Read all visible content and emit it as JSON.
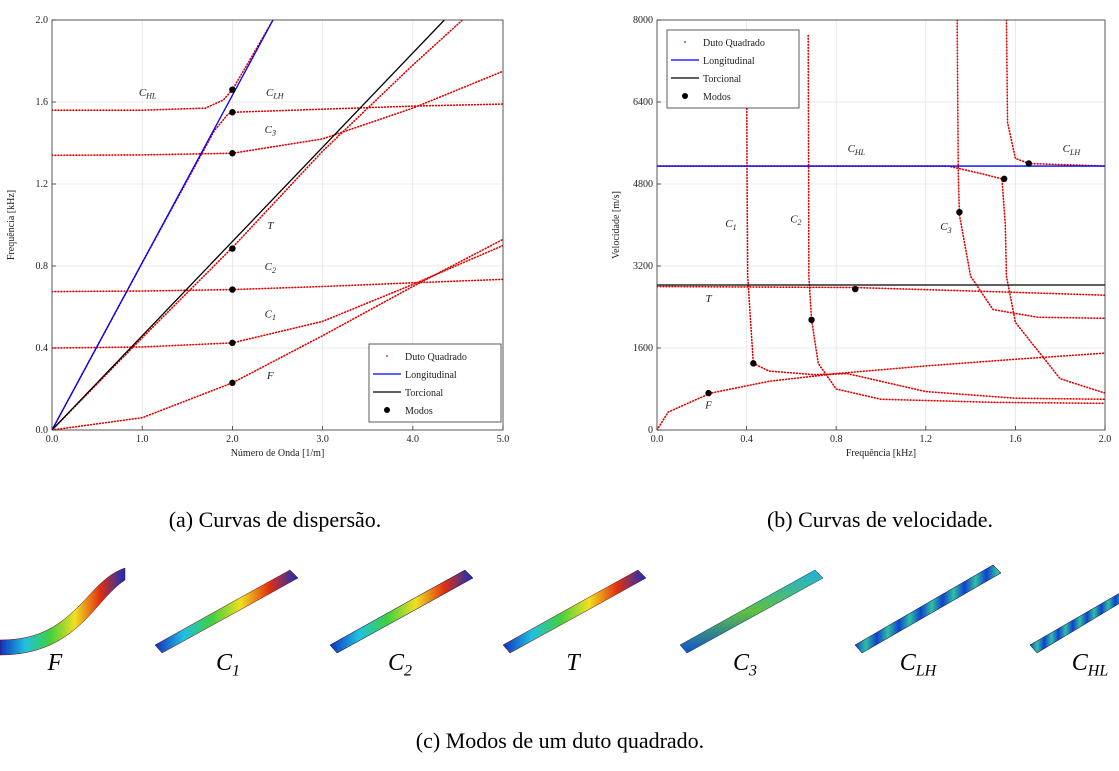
{
  "chart_data": [
    {
      "type": "line",
      "xlabel": "Número de Onda [1/m]",
      "ylabel": "Frequência [kHz]",
      "xlim": [
        0,
        5
      ],
      "ylim": [
        0,
        2
      ],
      "xticks": [
        {
          "value": 0,
          "label": "0.0"
        },
        {
          "value": 1,
          "label": "1.0"
        },
        {
          "value": 2,
          "label": "2.0"
        },
        {
          "value": 3,
          "label": "3.0"
        },
        {
          "value": 4,
          "label": "4.0"
        },
        {
          "value": 5,
          "label": "5.0"
        }
      ],
      "yticks": [
        {
          "value": 0,
          "label": "0.0"
        },
        0.4,
        0.8,
        1.2,
        1.6,
        {
          "value": 2,
          "label": "2.0"
        }
      ],
      "grid": true,
      "legend": "lower right",
      "series": [
        {
          "name": "Duto Quadrado",
          "color": "#e00000",
          "style": "dotted",
          "x": [
            0,
            1,
            2,
            3,
            4,
            5
          ],
          "values": [
            0,
            0.06,
            0.23,
            0.46,
            0.7,
            0.93
          ]
        },
        {
          "color": "#e00000",
          "style": "dotted",
          "x": [
            0,
            1,
            2,
            3,
            4,
            5
          ],
          "values": [
            0.4,
            0.405,
            0.425,
            0.53,
            0.71,
            0.9
          ]
        },
        {
          "color": "#e00000",
          "style": "dotted",
          "x": [
            0,
            1,
            2,
            3,
            4,
            5
          ],
          "values": [
            0.675,
            0.678,
            0.685,
            0.7,
            0.718,
            0.735
          ]
        },
        {
          "color": "#e00000",
          "style": "dotted",
          "x": [
            0,
            1,
            2,
            3,
            4,
            4.55
          ],
          "values": [
            0,
            0.45,
            0.89,
            1.36,
            1.78,
            2
          ]
        },
        {
          "color": "#e00000",
          "style": "dotted",
          "x": [
            0,
            1,
            2,
            3,
            4,
            5
          ],
          "values": [
            1.34,
            1.342,
            1.35,
            1.42,
            1.57,
            1.75
          ]
        },
        {
          "color": "#e00000",
          "style": "dotted",
          "x": [
            0,
            1,
            1.8,
            1.95,
            2,
            3,
            4,
            5
          ],
          "values": [
            0,
            0.815,
            1.46,
            1.54,
            1.55,
            1.565,
            1.58,
            1.59
          ]
        },
        {
          "color": "#e00000",
          "style": "dotted",
          "x": [
            0,
            1,
            1.7,
            1.9,
            2,
            2.2,
            2.45
          ],
          "values": [
            1.56,
            1.56,
            1.57,
            1.61,
            1.66,
            1.81,
            2
          ]
        },
        {
          "name": "Longitudinal",
          "color": "#0000ff",
          "style": "line",
          "x": [
            0,
            2.45
          ],
          "values": [
            0,
            2
          ]
        },
        {
          "name": "Torcional",
          "color": "#000000",
          "style": "line",
          "x": [
            0,
            4.35
          ],
          "values": [
            0,
            2
          ]
        },
        {
          "name": "Modos",
          "color": "#000000",
          "style": "markers",
          "x": [
            2,
            2,
            2,
            2,
            2,
            2,
            2
          ],
          "values": [
            0.23,
            0.425,
            0.685,
            0.885,
            1.35,
            1.55,
            1.66
          ]
        }
      ],
      "annotations": [
        {
          "text": "C",
          "sub": "HL"
        },
        {
          "text": "C",
          "sub": "LH"
        },
        {
          "text": "C",
          "sub": "3"
        },
        {
          "text": "T"
        },
        {
          "text": "C",
          "sub": "2"
        },
        {
          "text": "C",
          "sub": "1"
        },
        {
          "text": "F"
        }
      ]
    },
    {
      "type": "line",
      "xlabel": "Frequência [kHz]",
      "ylabel": "Velocidade [m/s]",
      "xlim": [
        0,
        2
      ],
      "ylim": [
        0,
        8000
      ],
      "xticks": [
        {
          "value": 0,
          "label": "0.0"
        },
        0.4,
        0.8,
        1.2,
        1.6,
        {
          "value": 2,
          "label": "2.0"
        }
      ],
      "yticks": [
        0,
        1600,
        3200,
        4800,
        6400,
        8000
      ],
      "grid": true,
      "legend": "upper left",
      "series": [
        {
          "name": "Duto Quadrado",
          "color": "#e00000",
          "style": "dotted",
          "x": [
            0,
            0.05,
            0.24,
            0.5,
            0.8,
            1.2,
            1.6,
            2
          ],
          "values": [
            0,
            350,
            720,
            950,
            1100,
            1250,
            1380,
            1500
          ]
        },
        {
          "color": "#e00000",
          "style": "dotted",
          "x": [
            0.4,
            0.402,
            0.405,
            0.43,
            0.5,
            0.7,
            0.85,
            1,
            1.2,
            1.6,
            2
          ],
          "values": [
            7500,
            5000,
            3000,
            1300,
            1150,
            1080,
            1100,
            950,
            750,
            620,
            600
          ]
        },
        {
          "color": "#e00000",
          "style": "dotted",
          "x": [
            0.675,
            0.678,
            0.69,
            0.72,
            0.8,
            1,
            1.5,
            2
          ],
          "values": [
            7700,
            3000,
            2150,
            1300,
            800,
            600,
            540,
            520
          ]
        },
        {
          "color": "#e00000",
          "style": "dotted",
          "x": [
            0,
            0.885,
            1.5,
            2
          ],
          "values": [
            2800,
            2780,
            2700,
            2630
          ]
        },
        {
          "color": "#e00000",
          "style": "dotted",
          "x": [
            1.34,
            1.345,
            1.35,
            1.4,
            1.5,
            1.7,
            2
          ],
          "values": [
            8000,
            5000,
            4200,
            3000,
            2350,
            2200,
            2180
          ]
        },
        {
          "color": "#e00000",
          "style": "dotted",
          "x": [
            1.56,
            1.565,
            1.6,
            1.66,
            2
          ],
          "values": [
            8000,
            6000,
            5300,
            5200,
            5150
          ]
        },
        {
          "color": "#e00000",
          "style": "dotted",
          "x": [
            0,
            1.3,
            1.45,
            1.54,
            1.555,
            1.56,
            1.6,
            1.8,
            2
          ],
          "values": [
            5150,
            5150,
            5000,
            4900,
            4000,
            3000,
            2100,
            1000,
            720
          ]
        },
        {
          "name": "Longitudinal",
          "color": "#0000ff",
          "style": "line",
          "x": [
            0,
            2
          ],
          "values": [
            5150,
            5150
          ]
        },
        {
          "name": "Torcional",
          "color": "#000000",
          "style": "line",
          "x": [
            0,
            2
          ],
          "values": [
            2830,
            2830
          ]
        },
        {
          "name": "Modos",
          "color": "#000000",
          "style": "markers",
          "x": [
            0.23,
            0.43,
            0.69,
            0.885,
            1.35,
            1.55,
            1.66
          ],
          "values": [
            720,
            1300,
            2150,
            2750,
            4250,
            4900,
            5200
          ]
        }
      ],
      "annotations": [
        {
          "text": "C",
          "sub": "HL"
        },
        {
          "text": "C",
          "sub": "LH"
        },
        {
          "text": "C",
          "sub": "1"
        },
        {
          "text": "C",
          "sub": "2"
        },
        {
          "text": "C",
          "sub": "3"
        },
        {
          "text": "T"
        },
        {
          "text": "F"
        }
      ]
    }
  ],
  "captions": [
    "(a) Curvas de dispersão.",
    "(b) Curvas de velocidade.",
    "(c) Modos de um duto quadrado."
  ],
  "modes": [
    {
      "text": "F"
    },
    {
      "text": "C",
      "sub": "1"
    },
    {
      "text": "C",
      "sub": "2"
    },
    {
      "text": "T"
    },
    {
      "text": "C",
      "sub": "3"
    },
    {
      "text": "C",
      "sub": "LH"
    },
    {
      "text": "C",
      "sub": "HL"
    }
  ]
}
